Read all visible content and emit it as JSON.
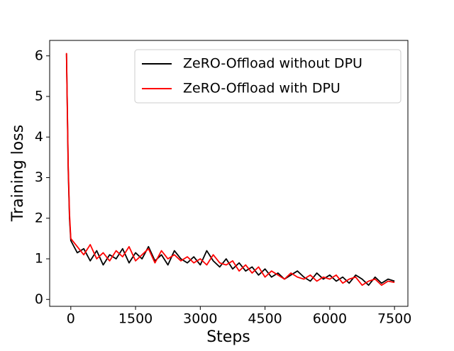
{
  "chart_data": {
    "type": "line",
    "xlabel": "Steps",
    "ylabel": "Training loss",
    "x": [
      -100,
      -60,
      -30,
      0,
      150,
      300,
      450,
      600,
      750,
      900,
      1050,
      1200,
      1350,
      1500,
      1650,
      1800,
      1950,
      2100,
      2250,
      2400,
      2550,
      2700,
      2850,
      3000,
      3150,
      3300,
      3450,
      3600,
      3750,
      3900,
      4050,
      4200,
      4350,
      4500,
      4650,
      4800,
      4950,
      5100,
      5250,
      5400,
      5550,
      5700,
      5850,
      6000,
      6150,
      6300,
      6450,
      6600,
      6750,
      6900,
      7050,
      7200,
      7350,
      7500
    ],
    "series": [
      {
        "name": "ZeRO-Offload without DPU",
        "color": "#000000",
        "values": [
          6.05,
          3.2,
          2.0,
          1.45,
          1.15,
          1.25,
          0.95,
          1.2,
          0.85,
          1.1,
          1.0,
          1.25,
          0.9,
          1.15,
          1.0,
          1.3,
          0.95,
          1.1,
          0.85,
          1.2,
          1.0,
          0.9,
          1.05,
          0.85,
          1.2,
          0.95,
          0.8,
          1.0,
          0.75,
          0.9,
          0.7,
          0.8,
          0.6,
          0.75,
          0.55,
          0.65,
          0.5,
          0.6,
          0.7,
          0.55,
          0.45,
          0.65,
          0.5,
          0.6,
          0.45,
          0.55,
          0.4,
          0.6,
          0.5,
          0.35,
          0.55,
          0.4,
          0.5,
          0.45
        ]
      },
      {
        "name": "ZeRO-Offload with DPU",
        "color": "#ff0000",
        "values": [
          6.07,
          3.3,
          2.1,
          1.5,
          1.3,
          1.1,
          1.35,
          1.0,
          1.15,
          0.95,
          1.2,
          1.05,
          1.3,
          0.95,
          1.1,
          1.25,
          0.9,
          1.2,
          1.0,
          1.1,
          0.95,
          1.05,
          0.9,
          1.0,
          0.85,
          1.1,
          0.9,
          0.85,
          0.95,
          0.7,
          0.85,
          0.65,
          0.8,
          0.55,
          0.7,
          0.6,
          0.5,
          0.65,
          0.55,
          0.5,
          0.6,
          0.45,
          0.55,
          0.5,
          0.6,
          0.4,
          0.5,
          0.55,
          0.35,
          0.45,
          0.5,
          0.35,
          0.45,
          0.42
        ]
      }
    ],
    "xlim": [
      -490,
      7810
    ],
    "ylim": [
      -0.17,
      6.38
    ],
    "xticks": [
      0,
      1500,
      3000,
      4500,
      6000,
      7500
    ],
    "yticks": [
      0,
      1,
      2,
      3,
      4,
      5,
      6
    ],
    "legend": "upper right"
  }
}
